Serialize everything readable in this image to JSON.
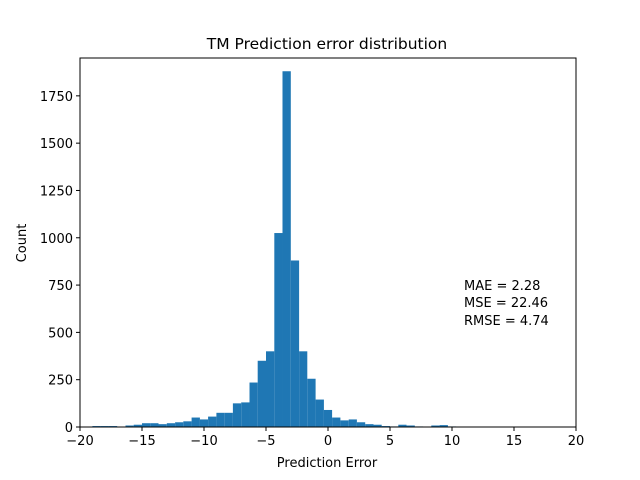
{
  "chart_data": {
    "type": "bar",
    "title": "TM Prediction error distribution",
    "xlabel": "Prediction Error",
    "ylabel": "Count",
    "xlim": [
      -20,
      20
    ],
    "ylim": [
      0,
      1950
    ],
    "xticks": [
      -20,
      -15,
      -10,
      -5,
      0,
      5,
      10,
      15,
      20
    ],
    "yticks": [
      0,
      250,
      500,
      750,
      1000,
      1250,
      1500,
      1750
    ],
    "bar_color": "#1f77b4",
    "bin_edges": [
      -19.0,
      -18.33,
      -17.67,
      -17.0,
      -16.33,
      -15.67,
      -15.0,
      -14.33,
      -13.67,
      -13.0,
      -12.33,
      -11.67,
      -11.0,
      -10.33,
      -9.67,
      -9.0,
      -8.33,
      -7.67,
      -7.0,
      -6.33,
      -5.67,
      -5.0,
      -4.33,
      -3.67,
      -3.0,
      -2.33,
      -1.67,
      -1.0,
      -0.33,
      0.33,
      1.0,
      1.67,
      2.33,
      3.0,
      3.67,
      4.33,
      5.0,
      5.67,
      6.33,
      7.0,
      7.67,
      8.33,
      9.0,
      9.67,
      10.33,
      11.0,
      11.67,
      12.33,
      13.0,
      13.67,
      14.33,
      15.0,
      15.67
    ],
    "counts": [
      5,
      5,
      5,
      2,
      8,
      12,
      20,
      20,
      15,
      20,
      25,
      30,
      50,
      40,
      55,
      75,
      75,
      125,
      130,
      235,
      350,
      400,
      1025,
      1880,
      880,
      400,
      255,
      145,
      90,
      50,
      35,
      40,
      25,
      15,
      12,
      5,
      3,
      12,
      8,
      3,
      2,
      8,
      10,
      3,
      0,
      0,
      0,
      0,
      0,
      0,
      0,
      0
    ],
    "annotations": [
      "MAE = 2.28",
      "MSE = 22.46",
      "RMSE = 4.74"
    ]
  }
}
